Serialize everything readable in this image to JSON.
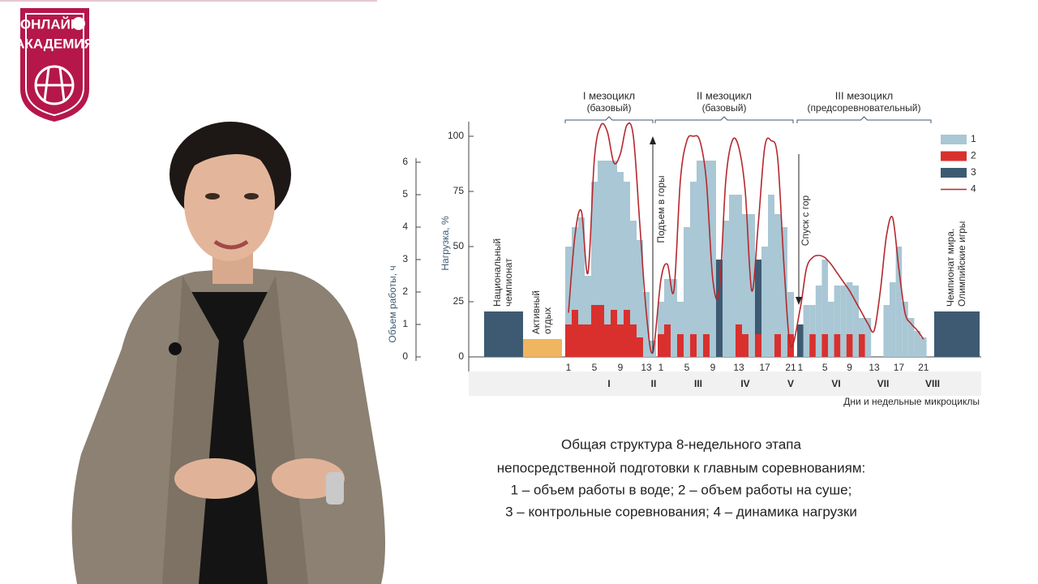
{
  "logo": {
    "line1": "ОНЛАЙН",
    "line2": "АКАДЕМИЯ"
  },
  "chart_data": {
    "type": "bar",
    "mesocycles": [
      {
        "title": "I мезоцикл",
        "subtitle": "(базовый)"
      },
      {
        "title": "II мезоцикл",
        "subtitle": "(базовый)"
      },
      {
        "title": "III мезоцикл",
        "subtitle": "(предсоревновательный)"
      }
    ],
    "ylabel": "Нагрузка, %",
    "y2label": "Объем работы, ч",
    "xlabel": "Дни и недельные микроциклы",
    "ylim": [
      0,
      100
    ],
    "yticks": [
      0,
      25,
      50,
      75,
      100
    ],
    "y2lim": [
      0,
      6
    ],
    "y2ticks": [
      0,
      1,
      2,
      3,
      4,
      5,
      6
    ],
    "categories": [
      "1",
      null,
      null,
      null,
      "5",
      null,
      null,
      null,
      "9",
      null,
      null,
      null,
      "13",
      null,
      "1",
      null,
      null,
      null,
      "5",
      null,
      null,
      null,
      "9",
      null,
      null,
      null,
      "13",
      null,
      null,
      null,
      "17",
      null,
      null,
      null,
      "21",
      "1",
      null,
      null,
      null,
      "5",
      null,
      null,
      null,
      "9",
      null,
      null,
      null,
      "13",
      null,
      null,
      null,
      "17",
      null,
      null,
      null,
      "21"
    ],
    "weeks": [
      "I",
      "II",
      "III",
      "IV",
      "V",
      "VI",
      "VII",
      "VIII"
    ],
    "blocks": [
      {
        "label": [
          "Национальный",
          "чемпионат"
        ],
        "value": 1.4,
        "color": "#3e5a72"
      },
      {
        "label": [
          "Активный",
          "отдых"
        ],
        "value": 0.55,
        "color": "#f0b560"
      },
      {
        "label": [
          "Чемпионат мира.",
          "Олимпийские игры"
        ],
        "value": 1.4,
        "color": "#3e5a72"
      }
    ],
    "annotations": [
      "Подъем в горы",
      "Спуск с гор"
    ],
    "series": [
      {
        "name": "1",
        "color": "#a9c7d4",
        "axis": "y2",
        "values": [
          3.4,
          4.0,
          4.3,
          2.5,
          5.4,
          6.05,
          6.05,
          6.05,
          5.7,
          5.4,
          4.2,
          3.6,
          2.0,
          0.5,
          1.7,
          2.4,
          2.4,
          1.7,
          4.0,
          5.4,
          6.05,
          6.05,
          6.05,
          0,
          4.2,
          5.0,
          5.0,
          4.4,
          4.4,
          0,
          3.4,
          5.0,
          4.4,
          4.0,
          2.0,
          0,
          1.6,
          1.6,
          2.2,
          3.0,
          1.7,
          2.2,
          2.2,
          2.3,
          2.2,
          1.2,
          1.2,
          0,
          0,
          1.6,
          2.3,
          3.4,
          1.7,
          1.2,
          0.8,
          0.6
        ]
      },
      {
        "name": "2",
        "color": "#d9302e",
        "axis": "y2",
        "values": [
          1.0,
          1.45,
          1.0,
          1.0,
          1.6,
          1.6,
          1.0,
          1.45,
          1.0,
          1.45,
          1.0,
          0.6,
          0,
          0,
          0.7,
          1.0,
          0,
          0.7,
          0,
          0.7,
          0,
          0.7,
          0,
          0,
          0,
          0,
          1.0,
          0.7,
          0,
          0.7,
          0,
          0,
          0.7,
          0,
          0.7,
          0,
          0,
          0.7,
          0,
          0.7,
          0,
          0.7,
          0,
          0.7,
          0,
          0.7,
          0,
          0,
          0,
          0,
          0,
          0,
          0,
          0,
          0,
          0
        ]
      },
      {
        "name": "3",
        "color": "#3e5a72",
        "axis": "y2",
        "values": [
          0,
          0,
          0,
          0,
          0,
          0,
          0,
          0,
          0,
          0,
          0,
          0,
          0,
          0,
          0,
          0,
          0,
          0,
          0,
          0,
          0,
          0,
          0,
          3.0,
          0,
          0,
          0,
          0,
          0,
          3.0,
          0,
          0,
          0,
          0,
          0,
          1.0,
          0,
          0,
          0,
          0,
          0,
          0,
          0,
          0,
          0,
          0,
          0,
          0,
          0,
          0,
          0,
          0,
          0,
          0,
          0,
          0
        ]
      },
      {
        "name": "4",
        "color": "#b5282e",
        "axis": "y",
        "type": "line",
        "values": [
          20,
          55,
          66,
          38,
          90,
          105,
          102,
          88,
          92,
          105,
          100,
          60,
          20,
          2,
          35,
          42,
          30,
          80,
          98,
          100,
          98,
          80,
          35,
          30,
          80,
          98,
          95,
          75,
          30,
          60,
          95,
          98,
          90,
          40,
          5,
          22,
          40,
          45,
          46,
          45,
          42,
          38,
          34,
          30,
          25,
          20,
          15,
          12,
          30,
          55,
          63,
          40,
          20,
          15,
          12,
          8
        ]
      }
    ]
  },
  "caption": [
    "Общая структура 8-недельного этапа",
    "непосредственной подготовки к главным соревнованиям:",
    "1 – объем работы в воде; 2 – объем работы на суше;",
    "3 – контрольные соревнования; 4 – динамика нагрузки"
  ]
}
